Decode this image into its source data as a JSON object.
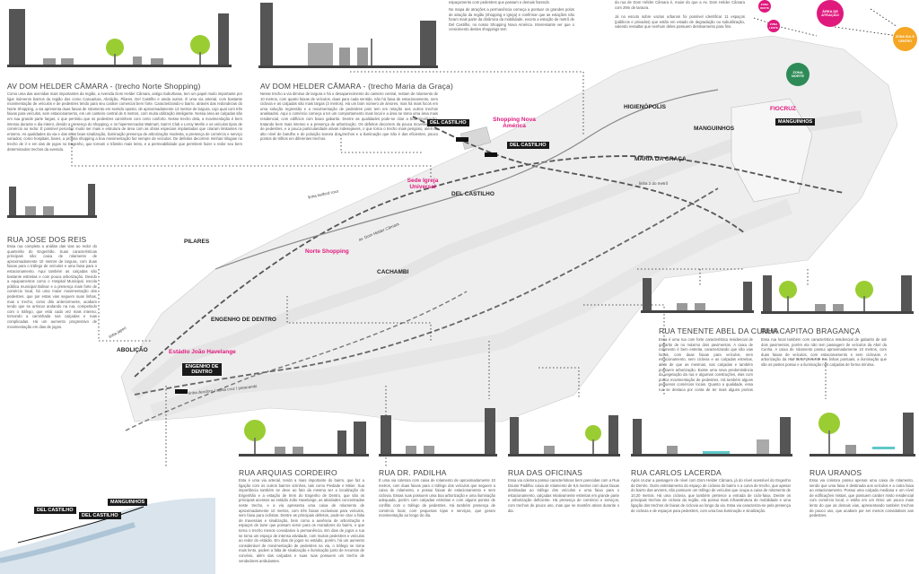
{
  "top_texts": {
    "top_left": "espaçamento com pedestres que passam e demais fazendo",
    "top_mid": "No mapa de atrações a permanência começa a pontuar os grandes polos de atração da região (shopping e igreja) e confirmar que as estações não foram mais parte da dinâmica da mobilidade, exceto a estação de metrô de Del Castilho, no nosso Shopping Nova América. Interessante ver que o crescimento destes shoppings tem",
    "top_right_a": "da rua de Dom Hélder Câmara é, maior do que a Av. Dom Helder Câmara com 29m de largura.",
    "top_right_b": "Já no escuto sobre vazios urbanos foi possível identificar 11 espaços (públicos e privados) que estão em estado de degradação ou subutilização, valendo ressaltar que nenhum deles possuem destinamento para fins."
  },
  "bubbles": {
    "area_atracao": "ÁREA DE ATRAÇÃO",
    "zona_oeste": "ZONA OESTE",
    "zona_sul": "ZONA SUL E CENTRO",
    "zona_norte": "ZONA NORTE",
    "zona_leste": "ZONA LESTE"
  },
  "sections": [
    {
      "title": "AV DOM HELDER CÂMARA - (trecho Norte Shopping)",
      "text": "Como uma das avenidas mais importantes da região, a Avenida Dom Helder Câmara, antiga Suburbana, tem um papel muito importante por ligar inúmeros bairros da região dos como Cascadura, Abolição, Pilares, Del Castilho e ainda outros. É uma via arterial, com bastante movimentação de veículos e de pedestres tendo para seu caráter comercial bem forte. Caracterizando-o bairro, através das redondezas do Norte Shopping, a via apresenta duas faixas de rolamento em sentido oposto, de aproximadamente 13 metros de largura, cujo qual com três faixas para veículos, sem estacionamento, em um canteiro central de 6 metros, com muita utilização inteligente. Nessa área as calçadas são em sua grande parte largas, o que permitiu que os pedestres caminhem com certo conforto. Nesse trecho dela, a movimentação é bem intensa durante o dia inteiro, devido a presença do shopping, e os hipermercados Walmart, Sam's Club e Leroy Merlin e os veículos tipos de comércio ao redor. É possível perceber muito ser mais e estrutura de área com as obras especiais implantadas que criaram limitantes no entorno. As qualidades da via e das suas boas sinalização, iluminação presença de arborização modesta, a presença de comércio e serviço variados, como hospitais, bares, a própria shopping a boa movimentação faz sempre de veículos. De defeitos decorrem minhas trilogias no trecho de ir e em das de jogos no Engenho, que tornam o trânsito mais lento, e a permeabilidade que permitem fazer o redor seu bem determinados trechos da avenida."
    },
    {
      "title": "AV DOM HELDER CÂMARA - (trecho Maria da Graça)",
      "text": "Nesse trecho a via diminui de largura e há o desaparecimento do canteiro central, restam de rolamento de 10 metros, com quatro faixas de veículos, duas para cada sentido, não há faixa de estacionamento, nem ciclovia e as calçadas são mais largas (3 metros). Há um bom número de árvores, mas há mais focos em uma solução regressão e a movimentação de pedestres pois tem em relação aos outros trechos analisados. Aqui o comércio começa a ter um comportamento mais local e a área se toma uma área mais residencial, com edifícios com baixo gabarito. Dentre as qualidades pode-se citar a boa sinalização, tratando bem mais intenso e a presença de arborização. Os defeitos decorrem da pouca movimentação de pedestres, e a pouca particularidade ativas indesejáveis, o que torna o trecho mais perigoso, além do alto nível de barulho e de poluição sonora dos trechos e a iluminação que não é das eficientes, pouco pontos de trilhos em diferentes trechos."
    },
    {
      "title": "RUA JOSE DOS REIS",
      "text": "Essa rua completa a análise das vias ao redor do quarteirão do Engenhão. Suas características principais são: caixa de rolamento de aproximadamente 10 metros de largura, com duas faixas para o tráfego de veículos e uma faixa para o estacionamento. Aqui também as calçadas são bastante estreitas e com pouca arborização. Devido a equipamentos como o Hospital Municipal, escola pública municipal Bolivar e a presença mais forte de comércio local, há uma maior movimentação dos pedestres, que por estas vias seguem suas linhas, mas o trecho, como dito anteriormente, acabam tendo que se arriscar andando na rua, competindo com o tráfego, que está cada vez mais intenso, tornando a caminhada nas calçadas e ruas complicadas. Há um aumento progressivo de movimentação em dias de jogos."
    },
    {
      "title": "RUA TENENTE ABEL DA CUNHA",
      "text": "Essa é uma rua com forte característica residencial de gabarito de no máximo dois pavimentos. A caixa de rolamento é bem estreita, caracterizando que são vias locais, com duas faixas para veículos, sem estacionamento, sem ciclovia e as calçadas estreitas, além de que as mesmas, nas calçadas e também possuem arborização. Existe uma nova predominância da vegetação da rua e algumas construções, elas com pouca movimentação de pedestres. Há também alguns pequenos comércios locais. Quanto a qualidade, essa rua se destaca por conta de ter mais alguns pontos positivos, como a variação de tipologia do que a outras avenidas e principais."
    },
    {
      "title": "RUA CAPITAO BRAGANÇA",
      "text": "Essa rua local também com característica residencial de gabarito de até dois pavimentos, porém ela não tem passagem de veículos da Abel da Cunha. A caixa de rolamento possui aproximadamente 10 metros, com duas faixas de veículos, com estacionamento e sem ciclovias. A arborização da rua, tanto presente em linhas pontuais, a iluminação que são os postes possui e a iluminação nas calçadas de forma mínima."
    },
    {
      "title": "RUA ARQUIAS CORDEIRO",
      "text": "Esta é uma via arterial, tendo a mais importante do bairro, que faz a ligação com os outros bairros vizinhos, tais como Piedade e Méier. Sua importância também se deve ao fato da mesma ser a localização do Engenhão e a estação de trem do Engenho de Dentro, que são os principais acessos ao estádio João Havelange, as atividades concentradas neste trecho, e a via apresenta uma caixa de rolamento de aproximadamente 10 metros, com três faixas exclusivas para veículos, sem faixa para ciclistas. Dentre as principais defeitos, pode-se citar a falta de travessias e sinalização, bem como a ausência de arborização e espaços de lazer que possam servir para os moradores do bairro, e que torna o trecho menos convidativo à permanência. Em dias de jogos a rua se torna um espaço de intensa atividade, com muitos pedestres e veículos ao redor do estádio. Em dias de jogos no estádio, porém, há um aumento considerável de movimentação de pedestres na via, o tráfego se torna mais lento, podem a falta de sinalização e iluminação junto de recursos de convívio, além das calçadas e suas ruas possuem um trecho de vendedores ambulantes."
    },
    {
      "title": "RUA DR. PADILHA",
      "text": "É uma via coletora com caixa de rolamento de aproximadamente 10 metros, com duas faixas para o tráfego dos veículos que seguem a caixa de rolamento, e possui faixas de estacionamento e sem ciclovia. Essas ruas possuem uma boa arborização e uma iluminação adequada, porém com calçadas estreitas e com alguns pontos de conflito com o tráfego de pedestres. Há também presença de comércio local, com pequenas lojas e serviços, que geram movimentação ao longo do dia."
    },
    {
      "title": "RUA DAS OFICINAS",
      "text": "Essa via coletora possui características bem parecidas com a Rua Doutor Padilha: caixa de rolamento de 9,5 metros com duas faixas destinadas ao tráfego dos veículos e uma faixa para o estacionamento, calçadas relativamente estreitas em grande parte e arborização deficiente. Há presença de comércio e serviços, com trechos de pouco uso, mas que se mantêm ativos durante o dia."
    },
    {
      "title": "RUA CARLOS LACERDA",
      "text": "Após cruzar a passagem de nível com Dom Helder Câmara, já do nível acessível do Engenho de Dentro. Outro estreitamento do espaço de ciclovia do bairro e a curva de trecho, que apesar do bairro das arvores, não possuem um tráfego de veículos que ocupa a caixa de rolamento de 10,20 metros. Há uma ciclovia, que também pertence a entrada de ciclo-faixa. Dentre os principais trechos de ciclovia da região, ela possui mais infraestrutura de mobilidade e uma ligação dos trechos de faixas de ciclovia ao longo da via. Essa via caracteriza-se pela presença de ciclovia e de espaços para pedestres, com uma boa iluminação e sinalização."
    },
    {
      "title": "RUA URANOS",
      "text": "Essa via coletora possui apenas uma caixa de rolamento, sendo que uma faixa é destinada aos veículos e a outra faixa ao estacionamento. Possui uma calçada mediana e um nível de edificações mistas, que possuem caráter misto residencial com comércio local, e estão em um ritmo um pouco mais lento do que as demais vias, apresentando também trechos de pouco uso, que acabam por ser menos convidativos aos pedestres."
    }
  ],
  "map": {
    "neighborhoods": {
      "higienopolis": "HIGIENÓPOLIS",
      "manguinhos": "MANGUINHOS",
      "maria_da_graca": "MARIA DA GRAÇA",
      "del_castilho": "DEL CASTILHO",
      "pilares": "PILARES",
      "cachambi": "CACHAMBI",
      "engenho_de_dentro": "ENGENHO DE DENTRO",
      "abolicao": "ABOLIÇÃO"
    },
    "landmarks": {
      "shopping": "Shopping Nova América",
      "igreja": "Sede Igreja Universal",
      "norte_shopping": "Norte Shopping",
      "estadio": "Estádio João Havelange",
      "fiocruz": "FIOCRUZ"
    },
    "stations": {
      "del_castilho_1": "DEL CASTILHO",
      "del_castilho_2": "DEL CASTILHO",
      "manguinhos": "MANGUINHOS",
      "engenho": "ENGENHO DE DENTRO"
    },
    "lines": {
      "linha_belford": "linha belford roxo",
      "linha_metro": "linha 2 do metrô",
      "linha_deodoro": "linha deodoro / santa cruz / paracambi",
      "linha_japeri": "linha japeri",
      "dom_helder": "av. Dom Helder Câmara"
    }
  },
  "inset": {
    "del_castilho": "DEL CASTILHO",
    "del_castilho_2": "DEL CASTILHO",
    "manguinhos": "MANGUINHOS"
  },
  "colors": {
    "accent_pink": "#e0197d",
    "green_zone": "#2e8b57",
    "orange_zone": "#f5a623",
    "tree": "#9acd32",
    "street_gray": "#777777"
  }
}
